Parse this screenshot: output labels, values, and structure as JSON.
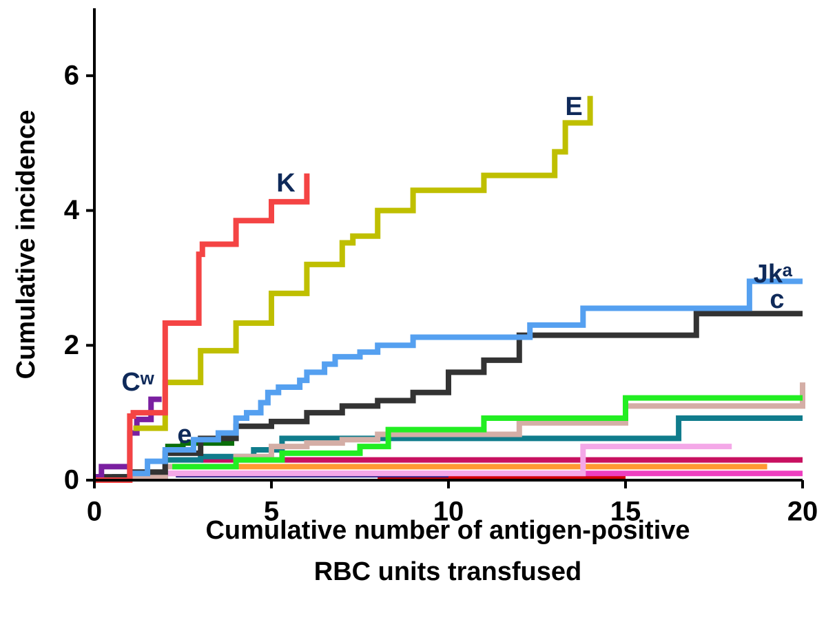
{
  "chart_data": {
    "type": "line",
    "step": "post",
    "ylabel": "Cumulative incidence",
    "xlabel": [
      "Cumulative number of antigen-positive",
      "RBC units transfused"
    ],
    "xlim": [
      0,
      20
    ],
    "xticks": [
      0,
      5,
      10,
      15,
      20
    ],
    "ylim": [
      0,
      7
    ],
    "yticks": [
      0,
      2,
      4,
      6
    ],
    "grid": false,
    "series": [
      {
        "color": "#d00000",
        "x": [
          8,
          15
        ],
        "values": [
          0.02,
          0.02
        ]
      },
      {
        "color": "#1a1a80",
        "x": [
          2.3,
          10
        ],
        "values": [
          0.08,
          0.08
        ]
      },
      {
        "color": "#ee3fc0",
        "x": [
          2,
          20
        ],
        "values": [
          0.1,
          0.1
        ]
      },
      {
        "color": "#ff9933",
        "x": [
          4,
          19
        ],
        "values": [
          0.2,
          0.2
        ]
      },
      {
        "color": "#c81060",
        "x": [
          3,
          20
        ],
        "values": [
          0.3,
          0.3
        ]
      },
      {
        "color": "#f4a8e8",
        "x": [
          2,
          13.8,
          18
        ],
        "values": [
          0.1,
          0.5,
          0.5
        ]
      },
      {
        "color": "#107c8c",
        "x": [
          0.5,
          2,
          3,
          4.5,
          5.3,
          16.5,
          20
        ],
        "values": [
          0.05,
          0.3,
          0.35,
          0.45,
          0.62,
          0.92,
          0.92
        ]
      },
      {
        "color": "#d4aea6",
        "x": [
          1,
          2,
          4,
          5,
          6,
          7,
          8,
          12,
          15,
          20,
          20
        ],
        "values": [
          0.05,
          0.2,
          0.35,
          0.5,
          0.55,
          0.6,
          0.68,
          0.85,
          1.1,
          1.1,
          1.45
        ]
      },
      {
        "color": "#22ee22",
        "x": [
          2.2,
          4,
          5.3,
          7.5,
          8.3,
          11,
          15,
          20
        ],
        "values": [
          0.2,
          0.3,
          0.4,
          0.5,
          0.75,
          0.92,
          1.22,
          1.22
        ]
      },
      {
        "name": "e",
        "color": "#0a6e0a",
        "x": [
          2,
          2.5,
          3.95
        ],
        "values": [
          0.5,
          0.55,
          0.55
        ]
      },
      {
        "name": "c",
        "color": "#333333",
        "x": [
          0,
          1,
          2,
          3,
          4,
          5,
          6,
          7,
          8,
          9,
          10,
          11,
          12,
          17,
          20
        ],
        "values": [
          0.05,
          0.12,
          0.4,
          0.62,
          0.8,
          0.87,
          1.0,
          1.1,
          1.18,
          1.3,
          1.6,
          1.78,
          2.15,
          2.47,
          2.47
        ]
      },
      {
        "name": "Jkᵃ",
        "color": "#55a0f0",
        "x": [
          1,
          1.5,
          2,
          2.8,
          3.5,
          4,
          4.3,
          4.7,
          4.9,
          5.2,
          5.8,
          6,
          6.5,
          6.8,
          7.5,
          8,
          9,
          12.3,
          13.8,
          18.5,
          20
        ],
        "values": [
          0.1,
          0.28,
          0.45,
          0.6,
          0.7,
          0.92,
          1.0,
          1.15,
          1.3,
          1.38,
          1.48,
          1.6,
          1.72,
          1.83,
          1.9,
          2.0,
          2.12,
          2.3,
          2.55,
          2.95,
          2.95
        ]
      },
      {
        "name": "Cʷ",
        "color": "#7a1fa0",
        "x": [
          0,
          0.2,
          1,
          1.2,
          1.6,
          1.9
        ],
        "values": [
          0.05,
          0.2,
          0.7,
          0.9,
          1.2,
          1.2
        ]
      },
      {
        "name": "E",
        "color": "#bfbf00",
        "x": [
          1.1,
          2,
          3,
          4,
          5,
          6,
          7,
          7.3,
          8,
          9,
          11,
          13,
          13.3,
          14
        ],
        "values": [
          0.77,
          1.45,
          1.92,
          2.33,
          2.77,
          3.2,
          3.52,
          3.62,
          4.0,
          4.3,
          4.52,
          4.87,
          5.3,
          5.7
        ]
      },
      {
        "name": "K",
        "color": "#f44444",
        "x": [
          0,
          1,
          1.1,
          2,
          2.95,
          3.05,
          4,
          5,
          6
        ],
        "values": [
          0,
          0.95,
          1.0,
          2.33,
          3.35,
          3.5,
          3.85,
          4.13,
          4.55
        ]
      }
    ]
  }
}
